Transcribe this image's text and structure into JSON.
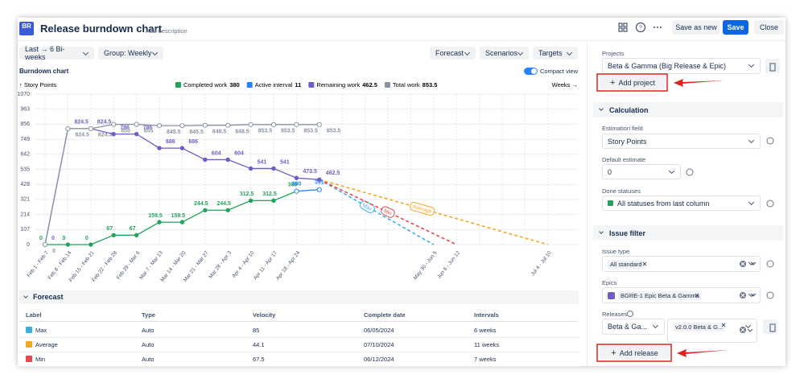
{
  "header": {
    "logo": "BR",
    "title": "Release burndown chart",
    "add_description": "Add description",
    "save_as_new": "Save as new",
    "save": "Save",
    "close": "Close"
  },
  "toolbar": {
    "range": "Last → 6 Bi-weeks",
    "group": "Group: Weekly",
    "forecast": "Forecast",
    "scenarios": "Scenarios",
    "targets": "Targets"
  },
  "chart_data": {
    "type": "line",
    "title": "Burndown chart",
    "compact_view": "Compact view",
    "y_label": "↑ Story Points",
    "x_label": "Weeks →",
    "ylim": [
      0,
      1070
    ],
    "yticks": [
      0,
      107,
      214,
      321,
      428,
      535,
      642,
      749,
      856,
      963,
      1070
    ],
    "grid": true,
    "categories": [
      "Feb 1 - Feb 7",
      "Feb 8 - Feb 14",
      "Feb 15 - Feb 21",
      "Feb 22 - Feb 28",
      "Feb 29 - Mar 6",
      "Mar 7 - Mar 13",
      "Mar 14 - Mar 20",
      "Mar 21 - Mar 27",
      "Mar 28 - Apr 3",
      "Apr 4 - Apr 10",
      "Apr 11 - Apr 17",
      "Apr 18 - Apr 24",
      null,
      null,
      null,
      null,
      null,
      "May 30 - Jun 5",
      "Jun 6 - Jun 12",
      null,
      null,
      null,
      "Jul 4 - Jul 10"
    ],
    "series": [
      {
        "name": "Completed work",
        "legend_value": 380,
        "color": "#22a45d",
        "values": [
          0,
          0,
          0,
          67,
          67,
          159.5,
          159.5,
          244.5,
          244.5,
          312.5,
          312.5,
          380,
          null,
          null,
          null,
          null,
          null,
          null,
          null,
          null,
          null,
          null,
          null
        ]
      },
      {
        "name": "Active interval",
        "legend_value": 11,
        "color": "#2684ff",
        "values": [
          null,
          null,
          null,
          null,
          null,
          null,
          null,
          null,
          null,
          null,
          null,
          380,
          391,
          null,
          null,
          null,
          null,
          null,
          null,
          null,
          null,
          null,
          null
        ]
      },
      {
        "name": "Remaining work",
        "legend_value": 462.5,
        "color": "#6e5dc6",
        "values": [
          0,
          824.5,
          824.5,
          786,
          786,
          686,
          686,
          604,
          604,
          541,
          541,
          473.5,
          462.5,
          null,
          null,
          null,
          null,
          null,
          null,
          null,
          null,
          null,
          null
        ]
      },
      {
        "name": "Total work",
        "legend_value": 853.5,
        "color": "#8993a4",
        "values": [
          0,
          824.5,
          824.5,
          855,
          855,
          845.5,
          845.5,
          848.5,
          848.5,
          853.5,
          853.5,
          853.5,
          853.5,
          null,
          null,
          null,
          null,
          null,
          null,
          null,
          null,
          null,
          null
        ]
      }
    ],
    "forecasts": [
      {
        "name": "Max",
        "color": "#3ab0e2",
        "x": [
          12,
          17
        ],
        "values": [
          462.5,
          0
        ]
      },
      {
        "name": "Min",
        "color": "#e5484d",
        "x": [
          12,
          18
        ],
        "values": [
          462.5,
          0
        ]
      },
      {
        "name": "Average",
        "color": "#f5a623",
        "x": [
          12,
          22
        ],
        "values": [
          462.5,
          0
        ]
      }
    ]
  },
  "forecast_table": {
    "title": "Forecast",
    "columns": [
      "Label",
      "Type",
      "Velocity",
      "Complete date",
      "Intervals"
    ],
    "colors": [
      "#3ab0e2",
      "#f5a623",
      "#e5484d"
    ],
    "rows": [
      [
        "Max",
        "Auto",
        85,
        "06/05/2024",
        "6 weeks"
      ],
      [
        "Average",
        "Auto",
        44.1,
        "07/10/2024",
        "11 weeks"
      ],
      [
        "Min",
        "Auto",
        67.5,
        "06/12/2024",
        "7 weeks"
      ]
    ]
  },
  "sidebar": {
    "projects": {
      "label": "Projects",
      "value": "Beta & Gamma (Big Release & Epic)",
      "button": "Add project"
    },
    "calculation": {
      "title": "Calculation",
      "estimation_field": {
        "label": "Estimation field",
        "value": "Story Points"
      },
      "default_estimate": {
        "label": "Default estimate",
        "value": "0"
      },
      "done_statuses": {
        "label": "Done statuses",
        "value": "All statuses from last column"
      }
    },
    "issue_filter": {
      "title": "Issue filter",
      "issue_type": {
        "label": "Issue type",
        "value": "All standard"
      },
      "epics": {
        "label": "Epics",
        "value": "BGRE-1 Epic Beta & Gamma"
      },
      "releases": {
        "label": "Releases",
        "value": "Beta & Ga...",
        "tag": "v2.0.0 Beta & G..."
      },
      "button": "Add release"
    }
  }
}
